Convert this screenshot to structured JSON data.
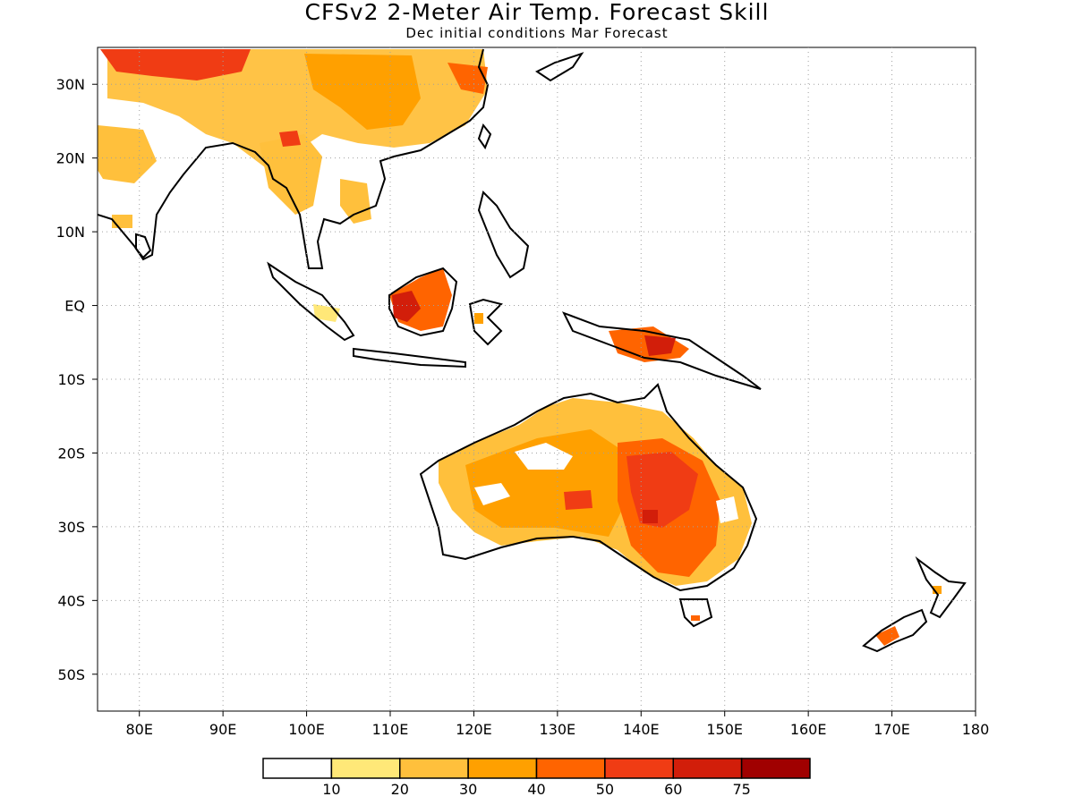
{
  "title": "CFSv2 2-Meter Air Temp. Forecast Skill",
  "subtitle": "Dec initial conditions  Mar Forecast",
  "map": {
    "lon_range": [
      75,
      180
    ],
    "lat_range": [
      -55,
      35
    ],
    "x_ticks": [
      {
        "lon": 80,
        "label": "80E"
      },
      {
        "lon": 90,
        "label": "90E"
      },
      {
        "lon": 100,
        "label": "100E"
      },
      {
        "lon": 110,
        "label": "110E"
      },
      {
        "lon": 120,
        "label": "120E"
      },
      {
        "lon": 130,
        "label": "130E"
      },
      {
        "lon": 140,
        "label": "140E"
      },
      {
        "lon": 150,
        "label": "150E"
      },
      {
        "lon": 160,
        "label": "160E"
      },
      {
        "lon": 170,
        "label": "170E"
      },
      {
        "lon": 180,
        "label": "180"
      }
    ],
    "y_ticks": [
      {
        "lat": 30,
        "label": "30N"
      },
      {
        "lat": 20,
        "label": "20N"
      },
      {
        "lat": 10,
        "label": "10N"
      },
      {
        "lat": 0,
        "label": "EQ"
      },
      {
        "lat": -10,
        "label": "10S"
      },
      {
        "lat": -20,
        "label": "20S"
      },
      {
        "lat": -30,
        "label": "30S"
      },
      {
        "lat": -40,
        "label": "40S"
      },
      {
        "lat": -50,
        "label": "50S"
      }
    ],
    "grid": "dotted"
  },
  "legend": {
    "colors": [
      "#ffffff",
      "#ffe878",
      "#ffc03c",
      "#ffa000",
      "#ff6400",
      "#f03c14",
      "#d21e0a",
      "#a00000"
    ],
    "labels": [
      "10",
      "20",
      "30",
      "40",
      "50",
      "60",
      "75"
    ]
  }
}
